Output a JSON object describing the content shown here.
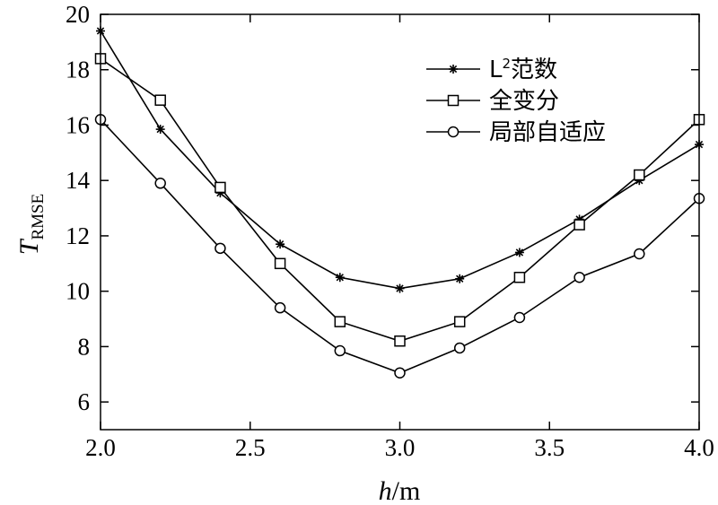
{
  "chart_data": {
    "type": "line",
    "x": [
      2.0,
      2.2,
      2.4,
      2.6,
      2.8,
      3.0,
      3.2,
      3.4,
      3.6,
      3.8,
      4.0
    ],
    "xlim": [
      2.0,
      4.0
    ],
    "ylim": [
      5,
      20
    ],
    "xticks": [
      2.0,
      2.5,
      3.0,
      3.5,
      4.0
    ],
    "xtick_labels": [
      "2.0",
      "2.5",
      "3.0",
      "3.5",
      "4.0"
    ],
    "yticks": [
      6,
      8,
      10,
      12,
      14,
      16,
      18,
      20
    ],
    "ytick_labels": [
      "6",
      "8",
      "10",
      "12",
      "14",
      "16",
      "18",
      "20"
    ],
    "xlabel": {
      "italic": "h",
      "rest": "/m"
    },
    "ylabel": {
      "main": "T",
      "sub": "RMSE"
    },
    "grid": false,
    "legend_position": "top-right",
    "series": [
      {
        "name_parts": {
          "pre": "L",
          "sup": "2",
          "post": "范数"
        },
        "marker": "asterisk",
        "values": [
          19.4,
          15.85,
          13.55,
          11.7,
          10.5,
          10.1,
          10.45,
          11.4,
          12.6,
          14.0,
          15.3
        ]
      },
      {
        "name": "全变分",
        "marker": "square",
        "values": [
          18.4,
          16.9,
          13.75,
          11.0,
          8.9,
          8.2,
          8.9,
          10.5,
          12.4,
          14.2,
          16.2
        ]
      },
      {
        "name": "局部自适应",
        "marker": "circle",
        "values": [
          16.2,
          13.9,
          11.55,
          9.4,
          7.85,
          7.05,
          7.95,
          9.05,
          10.5,
          11.35,
          13.35
        ]
      }
    ]
  }
}
